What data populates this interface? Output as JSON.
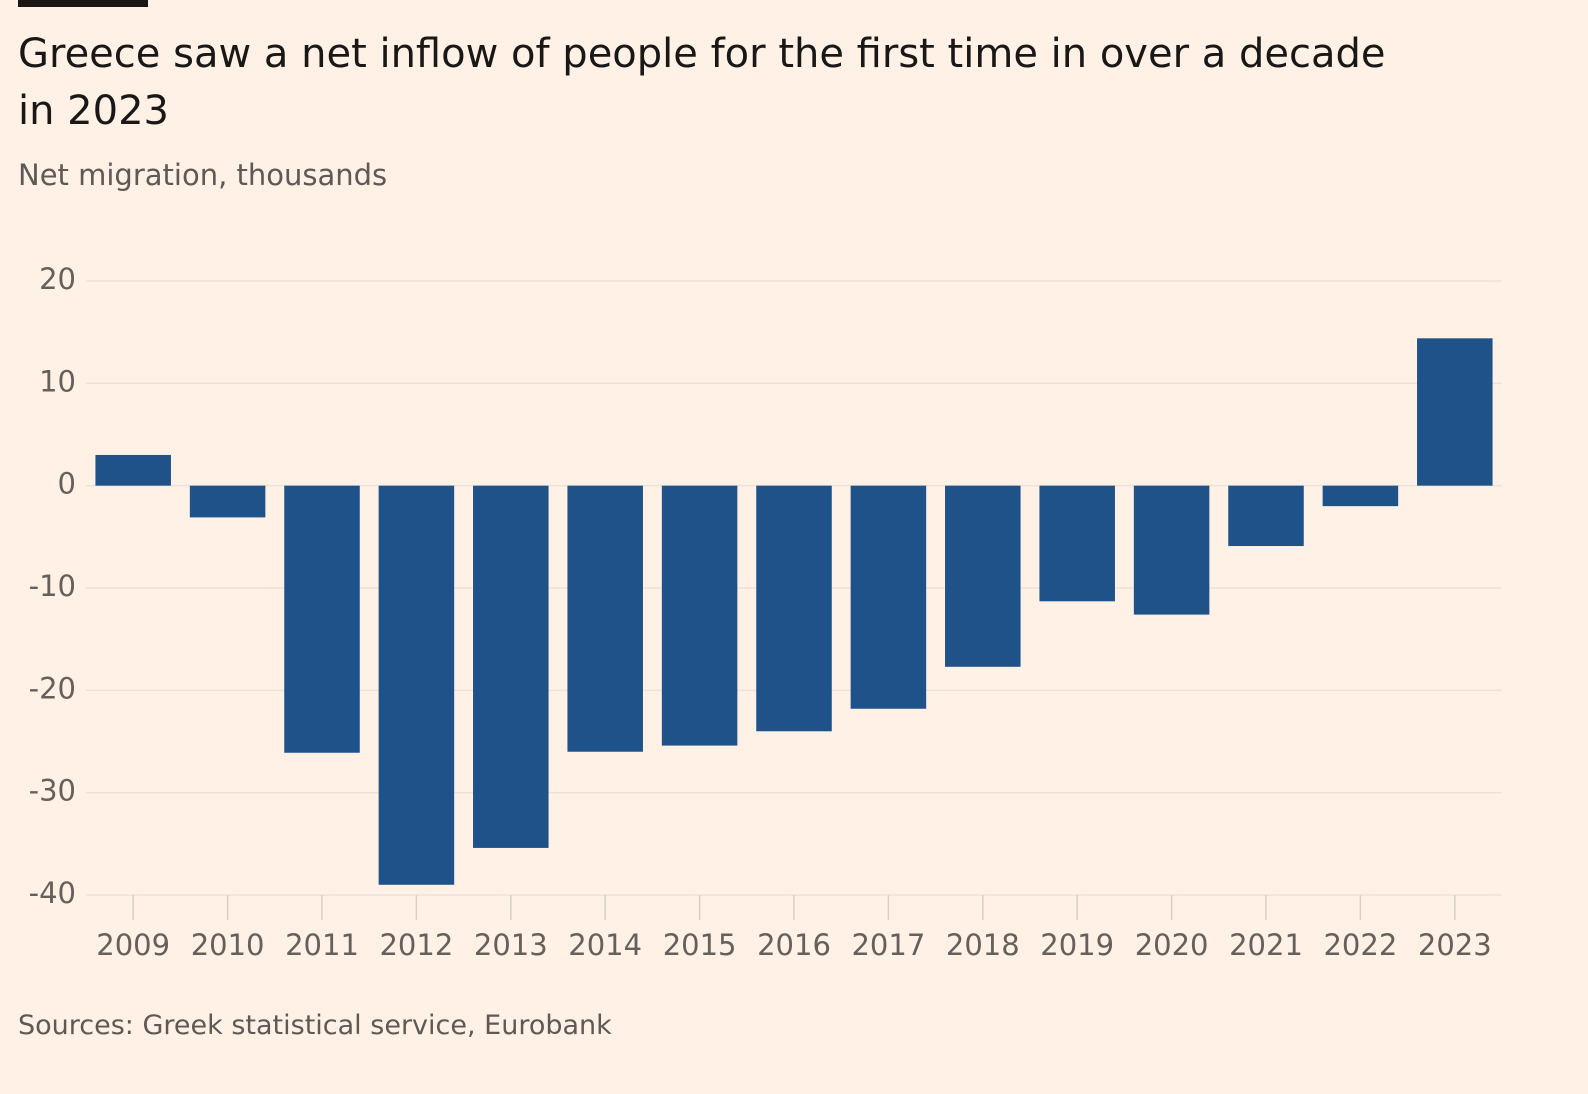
{
  "chart_data": {
    "type": "bar",
    "title": "Greece saw a net inflow of people for the first time in over a decade in 2023",
    "subtitle": "Net migration, thousands",
    "source": "Sources: Greek statistical service, Eurobank",
    "categories": [
      "2009",
      "2010",
      "2011",
      "2012",
      "2013",
      "2014",
      "2015",
      "2016",
      "2017",
      "2018",
      "2019",
      "2020",
      "2021",
      "2022",
      "2023"
    ],
    "values": [
      3,
      -3.1,
      -26.1,
      -39,
      -35.4,
      -26,
      -25.4,
      -24,
      -21.8,
      -17.7,
      -11.3,
      -12.6,
      -5.9,
      -2,
      14.4
    ],
    "color": "#1f5289",
    "ylim": [
      -40,
      20
    ],
    "yticks": [
      -40,
      -30,
      -20,
      -10,
      0,
      10,
      20
    ],
    "grid": true
  }
}
